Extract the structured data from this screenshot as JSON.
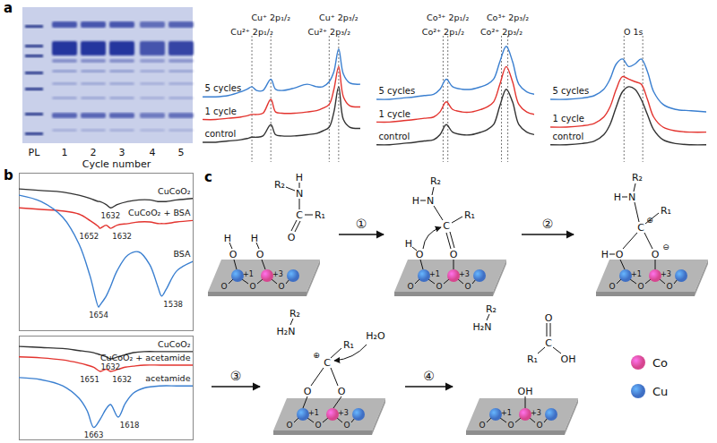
{
  "panel_labels": [
    "a",
    "b",
    "c"
  ],
  "gel": {
    "lanes": [
      "PL",
      "1",
      "2",
      "3",
      "4",
      "5"
    ],
    "xlabel": "Cycle number"
  },
  "chart_data": [
    {
      "type": "line",
      "tick_labels": false,
      "x": [
        0,
        8,
        16,
        24,
        28,
        31,
        34,
        38,
        43,
        46,
        50,
        58,
        66,
        72,
        76,
        80,
        83,
        86,
        89,
        93,
        100
      ],
      "xlim": [
        0,
        100
      ],
      "ylim": [
        0,
        100
      ],
      "series": [
        {
          "name": "control",
          "color": "#333333",
          "values": [
            16,
            16,
            17,
            18,
            19,
            20,
            20,
            21,
            30,
            22,
            21,
            21,
            22,
            23,
            25,
            28,
            40,
            60,
            34,
            28,
            27
          ]
        },
        {
          "name": "1 cycle",
          "color": "#e3342f",
          "values": [
            34,
            34,
            35,
            36,
            37,
            38,
            38,
            39,
            50,
            40,
            39,
            39,
            40,
            41,
            43,
            46,
            58,
            76,
            52,
            45,
            44
          ]
        },
        {
          "name": "5 cycles",
          "color": "#3a7fd0",
          "values": [
            52,
            52,
            53,
            56,
            58,
            60,
            57,
            57,
            66,
            58,
            57,
            59,
            62,
            60,
            60,
            64,
            72,
            90,
            70,
            63,
            62
          ]
        }
      ],
      "reference_lines": [
        31,
        43,
        80,
        86
      ],
      "annotations": [
        {
          "x": 31,
          "label": "Cu²⁺ 2p₁/₂"
        },
        {
          "x": 43,
          "label": "Cu⁺ 2p₁/₂"
        },
        {
          "x": 80,
          "label": "Cu²⁺ 2p₃/₂"
        },
        {
          "x": 86,
          "label": "Cu⁺ 2p₃/₂"
        }
      ]
    },
    {
      "type": "line",
      "tick_labels": false,
      "x": [
        0,
        8,
        16,
        24,
        30,
        36,
        40,
        44,
        48,
        54,
        60,
        66,
        70,
        74,
        78,
        82,
        86,
        90,
        95,
        100
      ],
      "xlim": [
        0,
        100
      ],
      "ylim": [
        0,
        100
      ],
      "series": [
        {
          "name": "control",
          "color": "#333333",
          "values": [
            14,
            14,
            15,
            16,
            17,
            18,
            22,
            30,
            24,
            22,
            22,
            24,
            26,
            30,
            45,
            58,
            48,
            30,
            24,
            22
          ]
        },
        {
          "name": "1 cycle",
          "color": "#e3342f",
          "values": [
            32,
            32,
            33,
            34,
            35,
            36,
            40,
            48,
            42,
            40,
            40,
            42,
            44,
            48,
            62,
            76,
            64,
            46,
            40,
            38
          ]
        },
        {
          "name": "5 cycles",
          "color": "#3a7fd0",
          "values": [
            50,
            50,
            51,
            52,
            53,
            54,
            58,
            66,
            60,
            58,
            58,
            60,
            62,
            66,
            80,
            92,
            80,
            62,
            56,
            54
          ]
        }
      ],
      "reference_lines": [
        42,
        45,
        79,
        83
      ],
      "annotations": [
        {
          "x": 42,
          "label": "Co²⁺ 2p₁/₂"
        },
        {
          "x": 45,
          "label": "Co³⁺ 2p₁/₂"
        },
        {
          "x": 79,
          "label": "Co²⁺ 2p₃/₂"
        },
        {
          "x": 83,
          "label": "Co³⁺ 2p₃/₂"
        }
      ]
    },
    {
      "type": "line",
      "tick_labels": false,
      "x": [
        0,
        10,
        20,
        28,
        34,
        38,
        42,
        46,
        50,
        54,
        58,
        62,
        66,
        72,
        80,
        90,
        100
      ],
      "xlim": [
        0,
        100
      ],
      "ylim": [
        0,
        100
      ],
      "series": [
        {
          "name": "control",
          "color": "#333333",
          "values": [
            14,
            14,
            15,
            17,
            22,
            30,
            44,
            56,
            60,
            58,
            50,
            38,
            26,
            18,
            15,
            14,
            14
          ]
        },
        {
          "name": "1 cycle",
          "color": "#e3342f",
          "values": [
            28,
            28,
            29,
            31,
            36,
            44,
            58,
            68,
            66,
            64,
            62,
            50,
            36,
            28,
            25,
            24,
            24
          ]
        },
        {
          "name": "5 cycles",
          "color": "#3a7fd0",
          "values": [
            50,
            50,
            51,
            53,
            58,
            66,
            78,
            82,
            76,
            78,
            82,
            72,
            56,
            46,
            42,
            41,
            40
          ]
        }
      ],
      "reference_lines": [
        47,
        59
      ],
      "annotations": [
        {
          "x": 53,
          "label": "O 1s"
        }
      ]
    },
    {
      "type": "line",
      "tick_labels": false,
      "x": [
        1800,
        1760,
        1720,
        1690,
        1670,
        1654,
        1652,
        1640,
        1632,
        1620,
        1600,
        1580,
        1560,
        1545,
        1538,
        1530,
        1510,
        1480
      ],
      "xlim": [
        1800,
        1480
      ],
      "ylim": [
        0,
        100
      ],
      "series": [
        {
          "name": "CuCoO₂",
          "color": "#333333",
          "peaks": [
            1632
          ],
          "values": [
            90,
            89,
            88,
            86,
            84,
            82,
            82,
            80,
            78,
            80,
            82,
            83,
            83,
            82,
            82,
            82,
            83,
            84
          ]
        },
        {
          "name": "CuCoO₂ + BSA",
          "color": "#e3342f",
          "peaks": [
            1652,
            1632
          ],
          "values": [
            78,
            77,
            76,
            74,
            70,
            66,
            65,
            67,
            65,
            67,
            68,
            69,
            69,
            68,
            68,
            68,
            69,
            70
          ]
        },
        {
          "name": "BSA",
          "color": "#3a7fd0",
          "peaks": [
            1654,
            1538
          ],
          "values": [
            86,
            82,
            72,
            55,
            35,
            15,
            16,
            22,
            28,
            38,
            48,
            50,
            42,
            28,
            22,
            26,
            38,
            44
          ]
        }
      ]
    },
    {
      "type": "line",
      "tick_labels": false,
      "x": [
        1800,
        1760,
        1720,
        1690,
        1675,
        1663,
        1651,
        1640,
        1632,
        1618,
        1605,
        1590,
        1570,
        1540,
        1510,
        1480
      ],
      "xlim": [
        1800,
        1480
      ],
      "ylim": [
        0,
        100
      ],
      "series": [
        {
          "name": "CuCoO₂",
          "color": "#333333",
          "peaks": [
            1632
          ],
          "values": [
            90,
            89,
            88,
            86,
            85,
            84,
            82,
            80,
            78,
            80,
            82,
            84,
            85,
            85,
            85,
            85
          ]
        },
        {
          "name": "CuCoO₂ + acetamide",
          "color": "#e3342f",
          "peaks": [
            1651,
            1632
          ],
          "values": [
            80,
            79,
            77,
            74,
            72,
            70,
            66,
            68,
            66,
            68,
            70,
            71,
            72,
            72,
            72,
            72
          ]
        },
        {
          "name": "acetamide",
          "color": "#3a7fd0",
          "peaks": [
            1663,
            1618
          ],
          "values": [
            60,
            58,
            52,
            40,
            28,
            12,
            20,
            30,
            34,
            22,
            35,
            45,
            50,
            52,
            52,
            52
          ]
        }
      ]
    }
  ],
  "mechanism": {
    "steps": [
      "①",
      "②",
      "③",
      "④"
    ],
    "atoms": {
      "H": "H",
      "O": "O",
      "N": "N",
      "C": "C",
      "R1": "R₁",
      "R2": "R₂",
      "H2N": "H₂N",
      "H2O": "H₂O",
      "OH": "OH",
      "plus": "⊕",
      "minus": "⊖"
    },
    "charges": [
      "+1",
      "+3"
    ],
    "legend": [
      {
        "label": "Co",
        "color": "#d6468f"
      },
      {
        "label": "Cu",
        "color": "#3f6fc4"
      }
    ]
  }
}
